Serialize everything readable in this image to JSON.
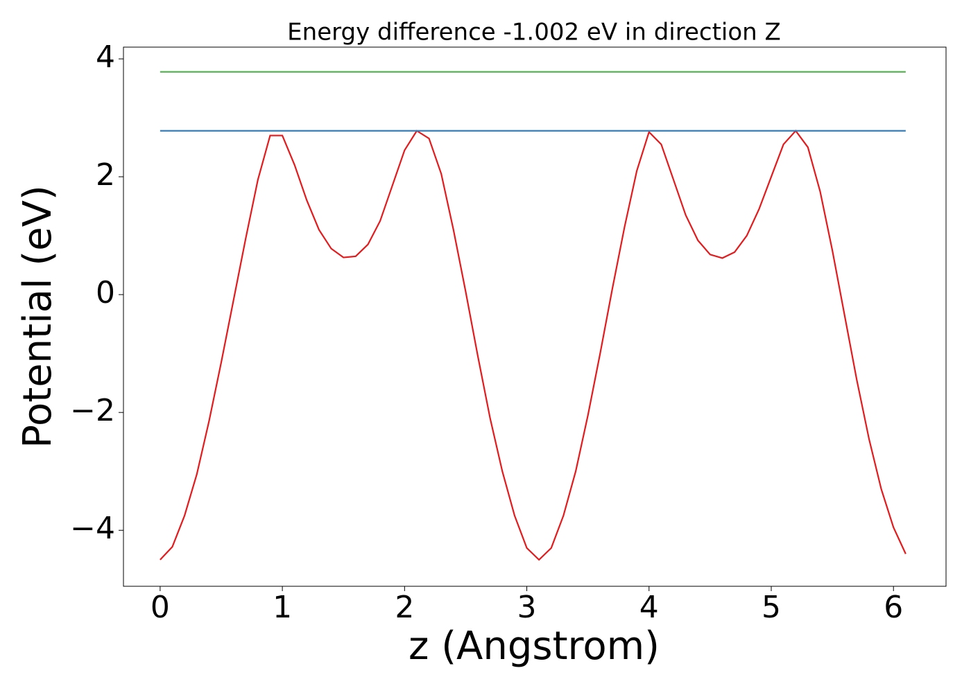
{
  "chart_data": {
    "type": "line",
    "title": "Energy difference -1.002 eV in direction Z",
    "xlabel": "z (Angstrom)",
    "ylabel": "Potential (eV)",
    "xlim": [
      -0.3,
      6.43
    ],
    "ylim": [
      -4.95,
      4.2
    ],
    "xticks": [
      0,
      1,
      2,
      3,
      4,
      5,
      6
    ],
    "yticks": [
      {
        "value": -4,
        "label": "−4"
      },
      {
        "value": -2,
        "label": "−2"
      },
      0,
      2,
      4
    ],
    "grid": false,
    "series": [
      {
        "color": "#e41a1c",
        "x": [
          0,
          0.1,
          0.2,
          0.3,
          0.4,
          0.5,
          0.6,
          0.7,
          0.8,
          0.9,
          1.0,
          1.1,
          1.2,
          1.3,
          1.4,
          1.5,
          1.6,
          1.7,
          1.8,
          1.9,
          2.0,
          2.1,
          2.2,
          2.3,
          2.4,
          2.5,
          2.6,
          2.7,
          2.8,
          2.9,
          3.0,
          3.1,
          3.2,
          3.3,
          3.4,
          3.5,
          3.6,
          3.7,
          3.8,
          3.9,
          4.0,
          4.1,
          4.2,
          4.3,
          4.4,
          4.5,
          4.6,
          4.7,
          4.8,
          4.9,
          5.0,
          5.1,
          5.2,
          5.3,
          5.4,
          5.5,
          5.6,
          5.7,
          5.8,
          5.9,
          6.0,
          6.1
        ],
        "values": [
          -4.5,
          -4.28,
          -3.75,
          -3.05,
          -2.15,
          -1.15,
          -0.1,
          0.95,
          1.95,
          2.7,
          2.7,
          2.2,
          1.6,
          1.1,
          0.78,
          0.63,
          0.65,
          0.85,
          1.25,
          1.85,
          2.45,
          2.78,
          2.65,
          2.05,
          1.1,
          0.05,
          -1.05,
          -2.1,
          -3.0,
          -3.75,
          -4.3,
          -4.5,
          -4.3,
          -3.75,
          -3.0,
          -2.05,
          -1.0,
          0.1,
          1.15,
          2.1,
          2.76,
          2.55,
          1.95,
          1.35,
          0.92,
          0.68,
          0.62,
          0.72,
          1.0,
          1.45,
          2.0,
          2.55,
          2.78,
          2.5,
          1.75,
          0.75,
          -0.35,
          -1.45,
          -2.45,
          -3.3,
          -3.95,
          -4.4
        ]
      },
      {
        "color": "#377eb8",
        "x": [
          0,
          6.1
        ],
        "values": [
          2.78,
          2.78
        ]
      },
      {
        "color": "#4daf4a",
        "x": [
          0,
          6.1
        ],
        "values": [
          3.78,
          3.78
        ]
      }
    ]
  }
}
